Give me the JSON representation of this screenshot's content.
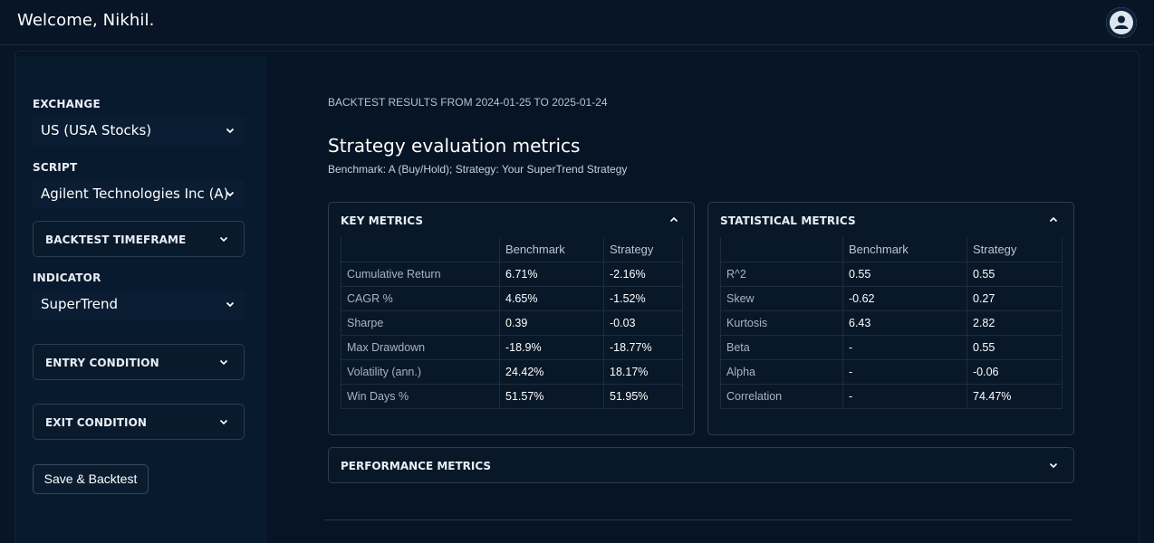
{
  "header": {
    "welcome": "Welcome, Nikhil."
  },
  "sidebar": {
    "exchange_label": "EXCHANGE",
    "exchange_value": "US (USA Stocks)",
    "script_label": "SCRIPT",
    "script_value": "Agilent Technologies Inc (A)",
    "timeframe_label": "BACKTEST TIMEFRAME",
    "indicator_label": "INDICATOR",
    "indicator_value": "SuperTrend",
    "entry_label": "ENTRY CONDITION",
    "exit_label": "EXIT CONDITION",
    "save_label": "Save & Backtest"
  },
  "main": {
    "results_range": "BACKTEST RESULTS FROM 2024-01-25 TO 2025-01-24",
    "title": "Strategy evaluation metrics",
    "benchmark_line": "Benchmark: A (Buy/Hold); Strategy: Your SuperTrend Strategy",
    "key_metrics": {
      "title": "KEY METRICS",
      "columns": [
        "",
        "Benchmark",
        "Strategy"
      ],
      "rows": [
        [
          "Cumulative Return",
          "6.71%",
          "-2.16%"
        ],
        [
          "CAGR %",
          "4.65%",
          "-1.52%"
        ],
        [
          "Sharpe",
          "0.39",
          "-0.03"
        ],
        [
          "Max Drawdown",
          "-18.9%",
          "-18.77%"
        ],
        [
          "Volatility (ann.)",
          "24.42%",
          "18.17%"
        ],
        [
          "Win Days %",
          "51.57%",
          "51.95%"
        ]
      ]
    },
    "statistical_metrics": {
      "title": "STATISTICAL METRICS",
      "columns": [
        "",
        "Benchmark",
        "Strategy"
      ],
      "rows": [
        [
          "R^2",
          "0.55",
          "0.55"
        ],
        [
          "Skew",
          "-0.62",
          "0.27"
        ],
        [
          "Kurtosis",
          "6.43",
          "2.82"
        ],
        [
          "Beta",
          "-",
          "0.55"
        ],
        [
          "Alpha",
          "-",
          "-0.06"
        ],
        [
          "Correlation",
          "-",
          "74.47%"
        ]
      ]
    },
    "performance_metrics": {
      "title": "PERFORMANCE METRICS"
    }
  },
  "icons": {
    "avatar": "user-avatar-icon",
    "dropdown": "chevron-down-icon",
    "collapse": "chevron-up-icon"
  },
  "colors": {
    "background": "#071527",
    "panel": "#081829",
    "border": "#2e3c50"
  }
}
